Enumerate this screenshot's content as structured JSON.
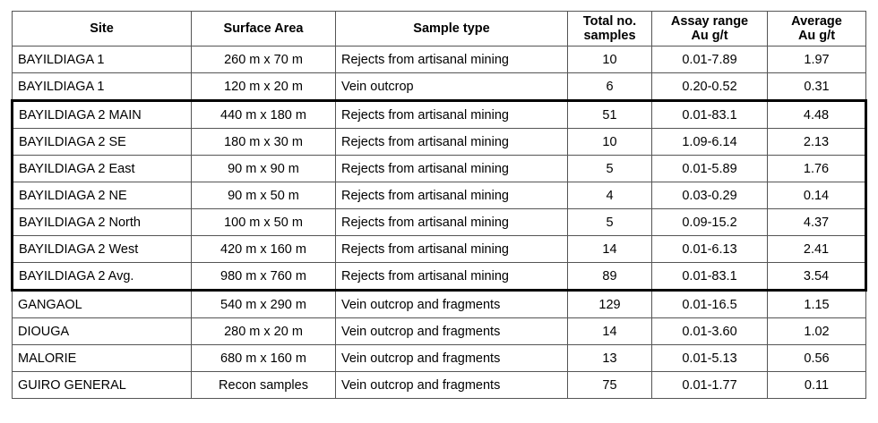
{
  "table": {
    "header": [
      [
        "Site"
      ],
      [
        "Surface Area"
      ],
      [
        "Sample type"
      ],
      [
        "Total no.",
        "samples"
      ],
      [
        "Assay range",
        "Au g/t"
      ],
      [
        "Average",
        "Au g/t"
      ]
    ],
    "rows": [
      [
        "BAYILDIAGA 1",
        "260 m x 70 m",
        "Rejects from artisanal mining",
        "10",
        "0.01-7.89",
        "1.97"
      ],
      [
        "BAYILDIAGA 1",
        "120 m x 20 m",
        "Vein outcrop",
        "6",
        "0.20-0.52",
        "0.31"
      ],
      [
        "BAYILDIAGA 2 MAIN",
        "440 m x 180 m",
        "Rejects from artisanal mining",
        "51",
        "0.01-83.1",
        "4.48"
      ],
      [
        "BAYILDIAGA 2 SE",
        "180 m x 30 m",
        "Rejects from artisanal mining",
        "10",
        "1.09-6.14",
        "2.13"
      ],
      [
        "BAYILDIAGA 2 East",
        "90 m x 90 m",
        "Rejects from artisanal mining",
        "5",
        "0.01-5.89",
        "1.76"
      ],
      [
        "BAYILDIAGA 2 NE",
        "90 m x 50 m",
        "Rejects from artisanal mining",
        "4",
        "0.03-0.29",
        "0.14"
      ],
      [
        "BAYILDIAGA 2 North",
        "100 m x 50 m",
        "Rejects from artisanal mining",
        "5",
        "0.09-15.2",
        "4.37"
      ],
      [
        "BAYILDIAGA 2 West",
        "420 m x 160 m",
        "Rejects from artisanal mining",
        "14",
        "0.01-6.13",
        "2.41"
      ],
      [
        "BAYILDIAGA 2 Avg.",
        "980 m x 760 m",
        "Rejects from artisanal mining",
        "89",
        "0.01-83.1",
        "3.54"
      ],
      [
        "GANGAOL",
        "540 m x 290 m",
        "Vein outcrop and fragments",
        "129",
        "0.01-16.5",
        "1.15"
      ],
      [
        "DIOUGA",
        "280 m x 20 m",
        "Vein outcrop and fragments",
        "14",
        "0.01-3.60",
        "1.02"
      ],
      [
        "MALORIE",
        "680 m x 160 m",
        "Vein outcrop and fragments",
        "13",
        "0.01-5.13",
        "0.56"
      ],
      [
        "GUIRO GENERAL",
        "Recon samples",
        "Vein outcrop and fragments",
        "75",
        "0.01-1.77",
        "0.11"
      ]
    ]
  }
}
